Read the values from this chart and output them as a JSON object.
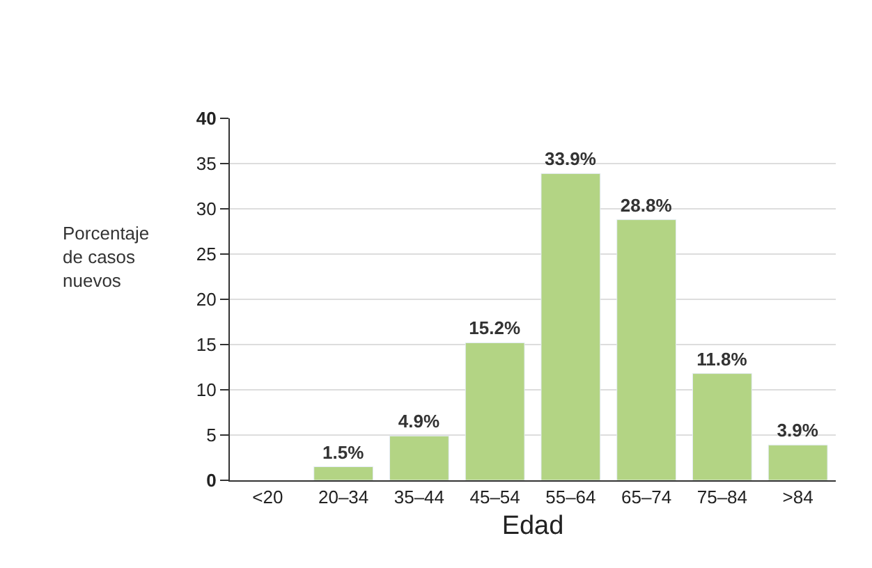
{
  "chart_data": {
    "type": "bar",
    "xlabel": "Edad",
    "ylabel": "Porcentaje de casos nuevos",
    "categories": [
      "<20",
      "20–34",
      "35–44",
      "45–54",
      "55–64",
      "65–74",
      "75–84",
      ">84"
    ],
    "values": [
      null,
      1.5,
      4.9,
      15.2,
      33.9,
      28.8,
      11.8,
      3.9
    ],
    "value_labels": [
      null,
      "1.5%",
      "4.9%",
      "15.2%",
      "33.9%",
      "28.8%",
      "11.8%",
      "3.9%"
    ],
    "color": "#b3d484",
    "ylim": [
      0,
      40
    ],
    "yticks": [
      0,
      5,
      10,
      15,
      20,
      25,
      30,
      35,
      40
    ],
    "grid": "y",
    "legend": false
  }
}
